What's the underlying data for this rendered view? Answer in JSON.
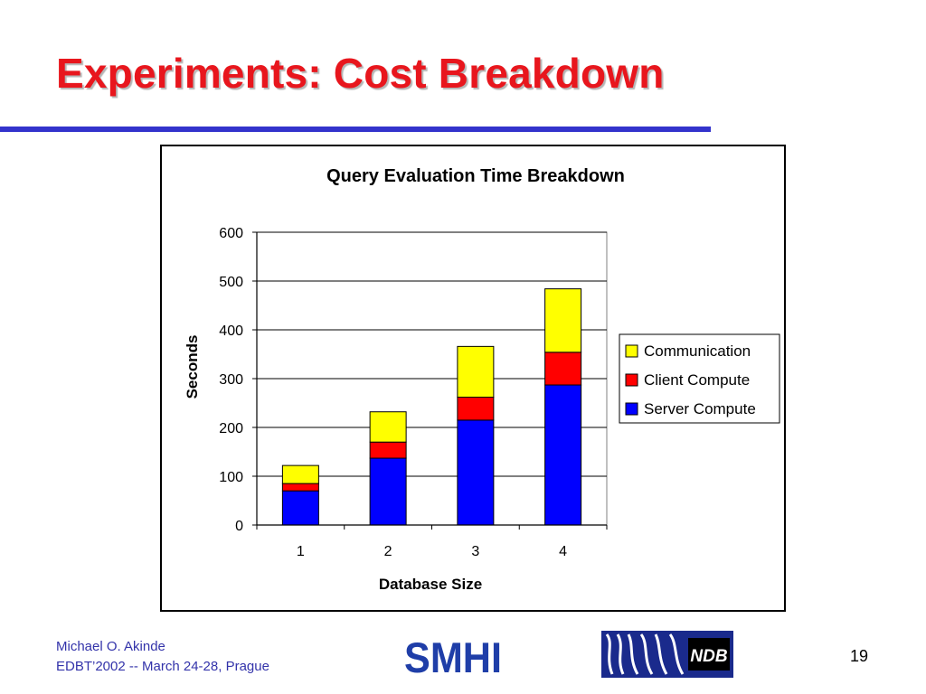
{
  "slide": {
    "title": "Experiments: Cost Breakdown",
    "footer_author": "Michael O. Akinde",
    "footer_conference": "EDBT’2002 -- March 24-28, Prague",
    "page_number": "19",
    "logo_left_text": "SMHI",
    "logo_right_text": "NDB"
  },
  "colors": {
    "title": "#e8161d",
    "rule": "#3333cc",
    "communication": "#ffff00",
    "client_compute": "#ff0000",
    "server_compute": "#0000ff"
  },
  "chart_data": {
    "type": "bar",
    "stacked": true,
    "title": "Query Evaluation Time Breakdown",
    "xlabel": "Database Size",
    "ylabel": "Seconds",
    "categories": [
      "1",
      "2",
      "3",
      "4"
    ],
    "ylim": [
      0,
      600
    ],
    "yticks": [
      0,
      100,
      200,
      300,
      400,
      500,
      600
    ],
    "grid": true,
    "legend_position": "right",
    "series": [
      {
        "name": "Server Compute",
        "color": "#0000ff",
        "values": [
          70,
          137,
          215,
          287
        ]
      },
      {
        "name": "Client Compute",
        "color": "#ff0000",
        "values": [
          15,
          33,
          47,
          67
        ]
      },
      {
        "name": "Communication",
        "color": "#ffff00",
        "values": [
          37,
          62,
          104,
          130
        ]
      }
    ]
  }
}
